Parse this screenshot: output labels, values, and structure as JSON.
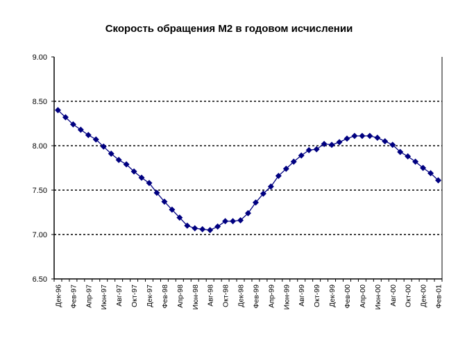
{
  "chart_data": {
    "type": "line",
    "title": "Скорость обращения М2 в годовом исчислении",
    "xlabel": "",
    "ylabel": "",
    "ylim": [
      6.5,
      9.0
    ],
    "yticks": [
      "6.50",
      "7.00",
      "7.50",
      "8.00",
      "8.50",
      "9.00"
    ],
    "grid": "horizontal dashed",
    "legend": "none",
    "series_color": "#000080",
    "x": [
      "Дек-96",
      "Янв-97",
      "Фев-97",
      "Мар-97",
      "Апр-97",
      "Май-97",
      "Июн-97",
      "Июл-97",
      "Авг-97",
      "Сен-97",
      "Окт-97",
      "Ноя-97",
      "Дек-97",
      "Янв-98",
      "Фев-98",
      "Мар-98",
      "Апр-98",
      "Май-98",
      "Июн-98",
      "Июл-98",
      "Авг-98",
      "Сен-98",
      "Окт-98",
      "Ноя-98",
      "Дек-98",
      "Янв-99",
      "Фев-99",
      "Мар-99",
      "Апр-99",
      "Май-99",
      "Июн-99",
      "Июл-99",
      "Авг-99",
      "Сен-99",
      "Окт-99",
      "Ноя-99",
      "Дек-99",
      "Янв-00",
      "Фев-00",
      "Мар-00",
      "Апр-00",
      "Май-00",
      "Июн-00",
      "Июл-00",
      "Авг-00",
      "Сен-00",
      "Окт-00",
      "Ноя-00",
      "Дек-00",
      "Янв-01",
      "Фев-01"
    ],
    "xtick_labels": [
      "Дек-96",
      "",
      "Фев-97",
      "",
      "Апр-97",
      "",
      "Июн-97",
      "",
      "Авг-97",
      "",
      "Окт-97",
      "",
      "Дек-97",
      "",
      "Фев-98",
      "",
      "Апр-98",
      "",
      "Июн-98",
      "",
      "Авг-98",
      "",
      "Окт-98",
      "",
      "Дек-98",
      "",
      "Фев-99",
      "",
      "Апр-99",
      "",
      "Июн-99",
      "",
      "Авг-99",
      "",
      "Окт-99",
      "",
      "Дек-99",
      "",
      "Фев-00",
      "",
      "Апр-00",
      "",
      "Июн-00",
      "",
      "Авг-00",
      "",
      "Окт-00",
      "",
      "Дек-00",
      "",
      "Фев-01"
    ],
    "values": [
      8.4,
      8.32,
      8.24,
      8.18,
      8.12,
      8.07,
      7.99,
      7.91,
      7.84,
      7.79,
      7.71,
      7.64,
      7.58,
      7.47,
      7.37,
      7.28,
      7.19,
      7.1,
      7.07,
      7.06,
      7.05,
      7.09,
      7.15,
      7.15,
      7.16,
      7.24,
      7.36,
      7.46,
      7.54,
      7.66,
      7.74,
      7.82,
      7.89,
      7.95,
      7.96,
      8.02,
      8.01,
      8.04,
      8.08,
      8.11,
      8.11,
      8.11,
      8.09,
      8.05,
      8.01,
      7.93,
      7.88,
      7.82,
      7.75,
      7.69,
      7.61
    ]
  }
}
